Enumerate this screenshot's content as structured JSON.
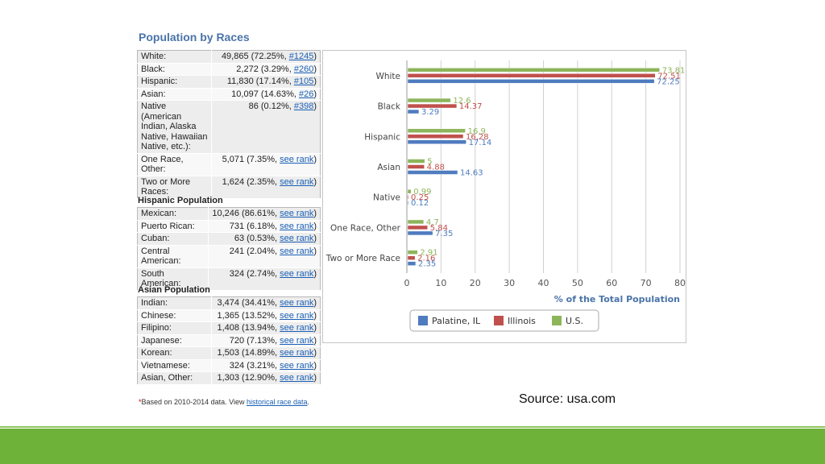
{
  "title": "Population by Races",
  "races_table": [
    {
      "label": "White:",
      "value": "49,865 (72.25%, ",
      "link": "#1245",
      "tail": ")"
    },
    {
      "label": "Black:",
      "value": "2,272 (3.29%, ",
      "link": "#260",
      "tail": ")"
    },
    {
      "label": "Hispanic:",
      "value": "11,830 (17.14%, ",
      "link": "#105",
      "tail": ")"
    },
    {
      "label": "Asian:",
      "value": "10,097 (14.63%, ",
      "link": "#26",
      "tail": ")"
    },
    {
      "label": "Native (American Indian, Alaska Native, Hawaiian Native, etc.):",
      "value": "86 (0.12%, ",
      "link": "#398",
      "tail": ")"
    },
    {
      "label": "One Race, Other:",
      "value": "5,071 (7.35%, ",
      "link": "see rank",
      "tail": ")"
    },
    {
      "label": "Two or More Races:",
      "value": "1,624 (2.35%, ",
      "link": "see rank",
      "tail": ")"
    }
  ],
  "hispanic_title": "Hispanic Population",
  "hispanic_table": [
    {
      "label": "Mexican:",
      "value": "10,246 (86.61%, ",
      "link": "see rank",
      "tail": ")"
    },
    {
      "label": "Puerto Rican:",
      "value": "731 (6.18%, ",
      "link": "see rank",
      "tail": ")"
    },
    {
      "label": "Cuban:",
      "value": "63 (0.53%, ",
      "link": "see rank",
      "tail": ")"
    },
    {
      "label": "Central American:",
      "value": "241 (2.04%, ",
      "link": "see rank",
      "tail": ")"
    },
    {
      "label": "South American:",
      "value": "324 (2.74%, ",
      "link": "see rank",
      "tail": ")"
    }
  ],
  "asian_title": "Asian Population",
  "asian_table": [
    {
      "label": "Indian:",
      "value": "3,474 (34.41%, ",
      "link": "see rank",
      "tail": ")"
    },
    {
      "label": "Chinese:",
      "value": "1,365 (13.52%, ",
      "link": "see rank",
      "tail": ")"
    },
    {
      "label": "Filipino:",
      "value": "1,408 (13.94%, ",
      "link": "see rank",
      "tail": ")"
    },
    {
      "label": "Japanese:",
      "value": "720 (7.13%, ",
      "link": "see rank",
      "tail": ")"
    },
    {
      "label": "Korean:",
      "value": "1,503 (14.89%, ",
      "link": "see rank",
      "tail": ")"
    },
    {
      "label": "Vietnamese:",
      "value": "324 (3.21%, ",
      "link": "see rank",
      "tail": ")"
    },
    {
      "label": "Asian, Other:",
      "value": "1,303 (12.90%, ",
      "link": "see rank",
      "tail": ")"
    }
  ],
  "footnote": {
    "asterisk": "*",
    "text": "Based on 2010-2014 data. View ",
    "link": "historical race data",
    "tail": "."
  },
  "source": "Source: usa.com",
  "chart_data": {
    "type": "bar",
    "orientation": "horizontal",
    "categories": [
      "White",
      "Black",
      "Hispanic",
      "Asian",
      "Native",
      "One Race, Other",
      "Two or More Race"
    ],
    "series": [
      {
        "name": "U.S.",
        "color": "#8db55a",
        "values": [
          73.81,
          12.6,
          16.9,
          5,
          0.99,
          4.7,
          2.91
        ]
      },
      {
        "name": "Illinois",
        "color": "#c0504d",
        "values": [
          72.51,
          14.37,
          16.28,
          4.88,
          0.25,
          5.84,
          2.16
        ]
      },
      {
        "name": "Palatine, IL",
        "color": "#4f7bbf",
        "values": [
          72.25,
          3.29,
          17.14,
          14.63,
          0.12,
          7.35,
          2.35
        ]
      }
    ],
    "value_labels": [
      [
        "73.81",
        "72.51",
        "72.25"
      ],
      [
        "12.6",
        "14.37",
        "3.29"
      ],
      [
        "16.9",
        "16.28",
        "17.14"
      ],
      [
        "5",
        "4.88",
        "14.63"
      ],
      [
        "0.99",
        "0.25",
        "0.12"
      ],
      [
        "4.7",
        "5.84",
        "7.35"
      ],
      [
        "2.91",
        "2.16",
        "2.35"
      ]
    ],
    "xlim": [
      0,
      80
    ],
    "xticks": [
      "0",
      "10",
      "20",
      "30",
      "40",
      "50",
      "60",
      "70",
      "80"
    ],
    "xlabel": "% of the Total Population",
    "legend": [
      "Palatine, IL",
      "Illinois",
      "U.S."
    ],
    "legend_colors": [
      "#4f7bbf",
      "#c0504d",
      "#8db55a"
    ],
    "legend_position": "bottom",
    "grid": true
  }
}
